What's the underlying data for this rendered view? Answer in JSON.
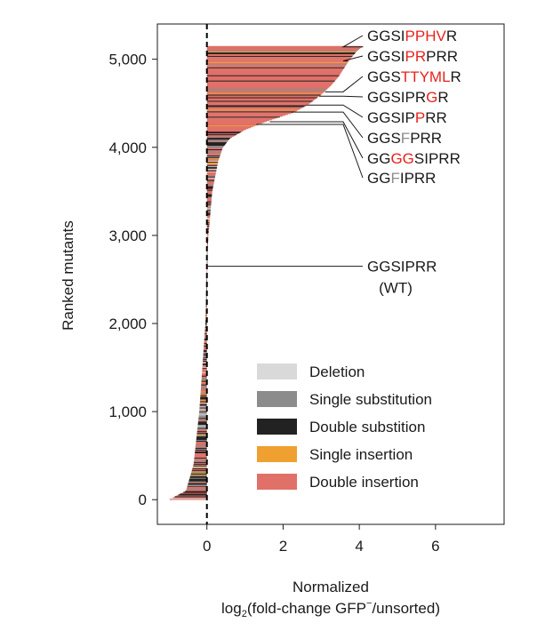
{
  "chart_data": {
    "type": "bar",
    "orientation": "horizontal",
    "xlabel_line1": "Normalized",
    "xlabel_line2_pre": "log",
    "xlabel_line2_sub": "2",
    "xlabel_line2_mid": "(fold-change GFP",
    "xlabel_line2_sup": "−",
    "xlabel_line2_post": "/unsorted)",
    "ylabel": "Ranked mutants",
    "xlim": [
      -1.3,
      7.8
    ],
    "ylim": [
      -280,
      5400
    ],
    "x_ticks": [
      0,
      2,
      4,
      6
    ],
    "x_tick_labels": [
      "0",
      "2",
      "4",
      "6"
    ],
    "y_ticks": [
      0,
      1000,
      2000,
      3000,
      4000,
      5000
    ],
    "y_tick_labels": [
      "0",
      "1,000",
      "2,000",
      "3,000",
      "4,000",
      "5,000"
    ],
    "reference_line": {
      "x": 0,
      "style": "dashed"
    },
    "n_mutants": 5150,
    "curve_profile": [
      {
        "rank": 0,
        "value": -1.0
      },
      {
        "rank": 100,
        "value": -0.55
      },
      {
        "rank": 400,
        "value": -0.35
      },
      {
        "rank": 1000,
        "value": -0.2
      },
      {
        "rank": 2000,
        "value": -0.04
      },
      {
        "rank": 2650,
        "value": 0.0
      },
      {
        "rank": 3000,
        "value": 0.04
      },
      {
        "rank": 3500,
        "value": 0.14
      },
      {
        "rank": 3850,
        "value": 0.3
      },
      {
        "rank": 4000,
        "value": 0.42
      },
      {
        "rank": 4100,
        "value": 0.6
      },
      {
        "rank": 4200,
        "value": 1.0
      },
      {
        "rank": 4300,
        "value": 1.6
      },
      {
        "rank": 4400,
        "value": 2.3
      },
      {
        "rank": 4500,
        "value": 2.7
      },
      {
        "rank": 4600,
        "value": 3.0
      },
      {
        "rank": 4700,
        "value": 3.25
      },
      {
        "rank": 4800,
        "value": 3.45
      },
      {
        "rank": 4900,
        "value": 3.6
      },
      {
        "rank": 5000,
        "value": 3.75
      },
      {
        "rank": 5100,
        "value": 3.95
      },
      {
        "rank": 5150,
        "value": 4.1
      }
    ],
    "series": [
      {
        "name": "Deletion",
        "color": "#d9d9d9"
      },
      {
        "name": "Single substitution",
        "color": "#8c8c8c"
      },
      {
        "name": "Double substition",
        "color": "#222222"
      },
      {
        "name": "Single insertion",
        "color": "#f0a030"
      },
      {
        "name": "Double insertion",
        "color": "#e07068"
      }
    ],
    "legend_position": "lower-right",
    "annotations": [
      {
        "rank": 5140,
        "x": 4.1,
        "segments": [
          {
            "text": "GGSI",
            "color": "#1a1a1a"
          },
          {
            "text": "PPHV",
            "color": "#e8221c"
          },
          {
            "text": "R",
            "color": "#1a1a1a"
          }
        ]
      },
      {
        "rank": 4980,
        "x": 3.7,
        "segments": [
          {
            "text": "GGSI",
            "color": "#1a1a1a"
          },
          {
            "text": "PR",
            "color": "#e8221c"
          },
          {
            "text": "PRR",
            "color": "#1a1a1a"
          }
        ]
      },
      {
        "rank": 4630,
        "x": 3.1,
        "segments": [
          {
            "text": "GGS",
            "color": "#1a1a1a"
          },
          {
            "text": "TTYML",
            "color": "#e8221c"
          },
          {
            "text": "R",
            "color": "#1a1a1a"
          }
        ]
      },
      {
        "rank": 4580,
        "x": 2.95,
        "segments": [
          {
            "text": "GGSIPR",
            "color": "#1a1a1a"
          },
          {
            "text": "G",
            "color": "#e8221c"
          },
          {
            "text": "R",
            "color": "#1a1a1a"
          }
        ]
      },
      {
        "rank": 4480,
        "x": 2.6,
        "segments": [
          {
            "text": "GGSIP",
            "color": "#1a1a1a"
          },
          {
            "text": "P",
            "color": "#e8221c"
          },
          {
            "text": "RR",
            "color": "#1a1a1a"
          }
        ]
      },
      {
        "rank": 4400,
        "x": 2.2,
        "segments": [
          {
            "text": "GGS",
            "color": "#1a1a1a"
          },
          {
            "text": "F",
            "color": "#8c8c8c"
          },
          {
            "text": "PRR",
            "color": "#1a1a1a"
          }
        ]
      },
      {
        "rank": 4290,
        "x": 1.65,
        "segments": [
          {
            "text": "GG",
            "color": "#1a1a1a"
          },
          {
            "text": "GG",
            "color": "#e8221c"
          },
          {
            "text": "SIPRR",
            "color": "#1a1a1a"
          }
        ]
      },
      {
        "rank": 4260,
        "x": 1.3,
        "segments": [
          {
            "text": "GG",
            "color": "#1a1a1a"
          },
          {
            "text": "F",
            "color": "#8c8c8c"
          },
          {
            "text": "IPRR",
            "color": "#1a1a1a"
          }
        ]
      },
      {
        "rank": 2650,
        "x": 0.0,
        "segments": [
          {
            "text": "GGSIPRR",
            "color": "#1a1a1a"
          }
        ],
        "second_line": "(WT)"
      }
    ]
  }
}
